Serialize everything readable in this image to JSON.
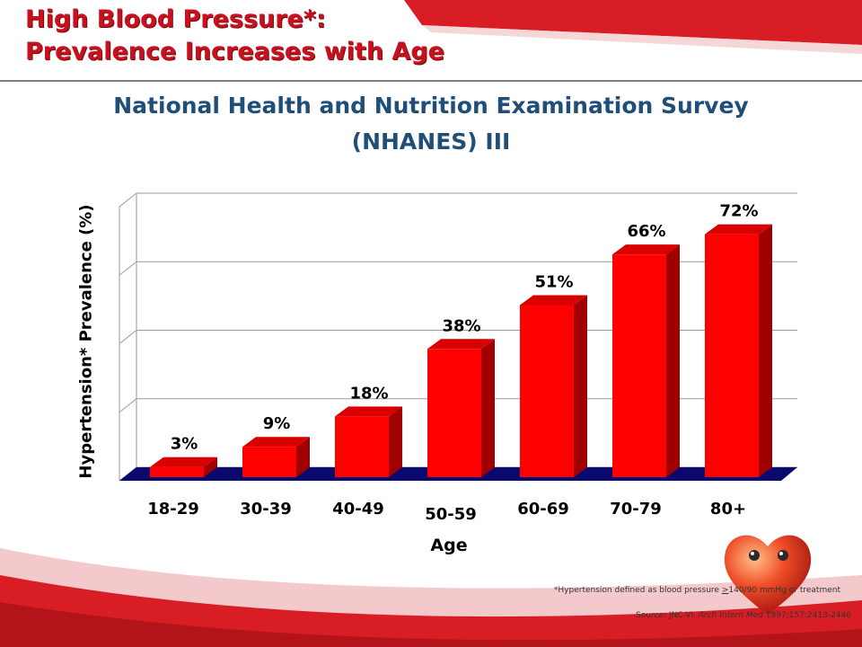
{
  "slide": {
    "title_line1": "High Blood Pressure*:",
    "title_line2": "Prevalence Increases with Age",
    "subtitle_line1": "National Health and Nutrition Examination Survey",
    "subtitle_line2": "(NHANES) III",
    "footnote_prefix": "*Hypertension defined as blood pressure ",
    "footnote_ge": ">",
    "footnote_suffix": "140/90 mmHg or treatment",
    "source_prefix": "Source: JNC-VI. ",
    "source_journal": "Arch Intern Med",
    "source_suffix": " 1997;157:2413-2446"
  },
  "colors": {
    "bar_front": "#ff0000",
    "bar_side": "#a00000",
    "bar_top": "#d80000",
    "floor": "#0a0a6e",
    "title": "#c8101e",
    "subtitle": "#1f4e79"
  },
  "chart_data": {
    "type": "bar",
    "ylabel": "Hypertension* Prevalence (%)",
    "xlabel": "Age",
    "categories": [
      "18-29",
      "30-39",
      "40-49",
      "50-59",
      "60-69",
      "70-79",
      "80+"
    ],
    "values": [
      3,
      9,
      18,
      38,
      51,
      66,
      72
    ],
    "value_labels": [
      "3%",
      "9%",
      "18%",
      "38%",
      "51%",
      "66%",
      "72%"
    ],
    "ylim": [
      0,
      80
    ],
    "grid": true,
    "legend": "none"
  }
}
